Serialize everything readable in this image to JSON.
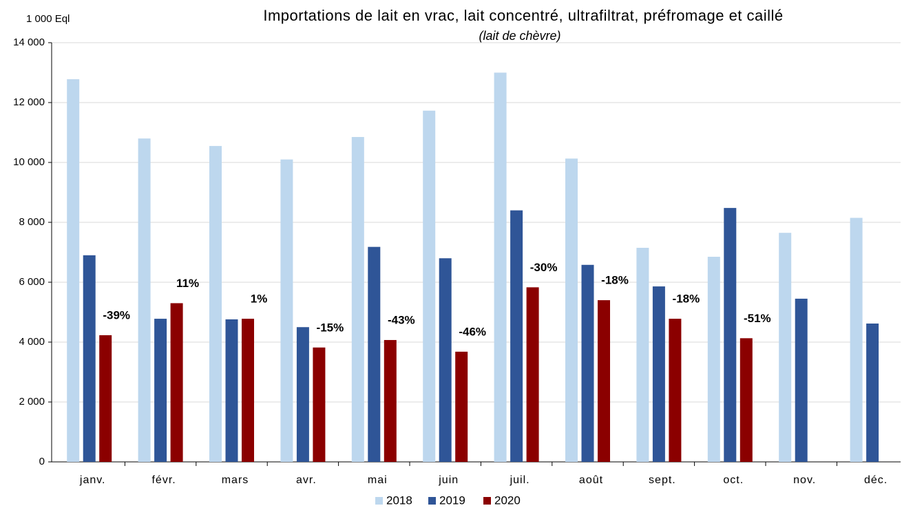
{
  "chart_data": {
    "type": "bar",
    "title": "Importations de lait en vrac, lait concentré, ultrafiltrat, préfromage et caillé",
    "subtitle": "(lait de chèvre)",
    "y_axis_label": "1 000 Eql",
    "categories": [
      "janv.",
      "févr.",
      "mars",
      "avr.",
      "mai",
      "juin",
      "juil.",
      "août",
      "sept.",
      "oct.",
      "nov.",
      "déc."
    ],
    "series": [
      {
        "name": "2018",
        "color": "#bdd7ee",
        "values": [
          12780,
          10800,
          10550,
          10100,
          10850,
          11730,
          13000,
          10130,
          7150,
          6850,
          7650,
          8150
        ]
      },
      {
        "name": "2019",
        "color": "#2f5597",
        "values": [
          6900,
          4780,
          4760,
          4500,
          7180,
          6800,
          8400,
          6580,
          5860,
          8480,
          5450,
          4620
        ]
      },
      {
        "name": "2020",
        "color": "#8b0000",
        "values": [
          4230,
          5300,
          4780,
          3820,
          4070,
          3680,
          5830,
          5400,
          4780,
          4130,
          null,
          null
        ]
      }
    ],
    "annotations": [
      "-39%",
      "11%",
      "1%",
      "-15%",
      "-43%",
      "-46%",
      "-30%",
      "-18%",
      "-18%",
      "-51%",
      null,
      null
    ],
    "ylim": [
      0,
      14000
    ],
    "yticks": [
      0,
      {
        "value": 2000,
        "label": "2 000"
      },
      {
        "value": 4000,
        "label": "4 000"
      },
      {
        "value": 6000,
        "label": "6 000"
      },
      {
        "value": 8000,
        "label": "8 000"
      },
      {
        "value": 10000,
        "label": "10 000"
      },
      {
        "value": 12000,
        "label": "12 000"
      },
      {
        "value": 14000,
        "label": "14 000"
      }
    ],
    "grid": true,
    "legend": "bottom"
  }
}
